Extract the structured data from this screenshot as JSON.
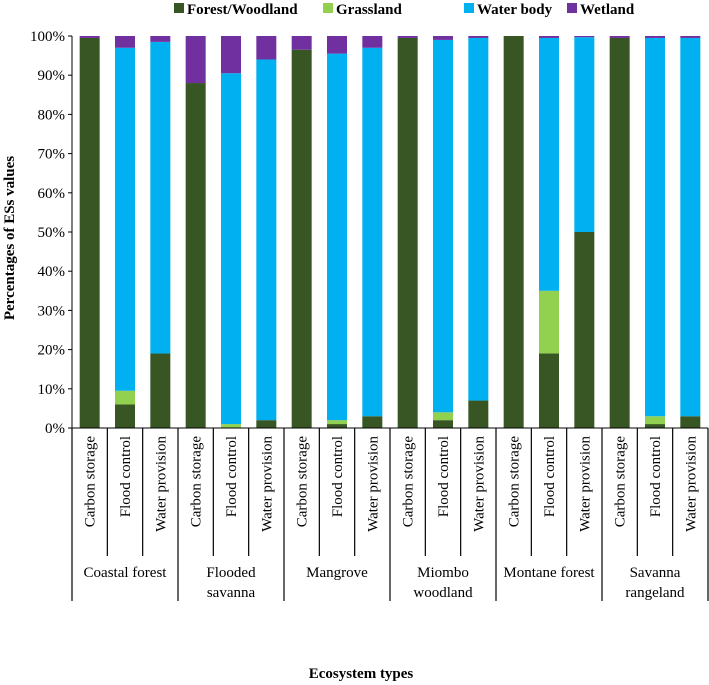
{
  "chart_data": {
    "type": "bar",
    "stacked": true,
    "percent": true,
    "title": "",
    "xlabel": "Ecosystem types",
    "ylabel": "Percentages of ESs values",
    "ylim": [
      0,
      100
    ],
    "yticks": [
      "0%",
      "10%",
      "20%",
      "30%",
      "40%",
      "50%",
      "60%",
      "70%",
      "80%",
      "90%",
      "100%"
    ],
    "legend_position": "top",
    "grid": false,
    "groups": [
      {
        "label_lines": [
          "Coastal forest"
        ],
        "services": [
          "Carbon storage",
          "Flood control",
          "Water provision"
        ]
      },
      {
        "label_lines": [
          "Flooded",
          "savanna"
        ],
        "services": [
          "Carbon storage",
          "Flood control",
          "Water provision"
        ]
      },
      {
        "label_lines": [
          "Mangrove"
        ],
        "services": [
          "Carbon storage",
          "Flood control",
          "Water provision"
        ]
      },
      {
        "label_lines": [
          "Miombo",
          "woodland"
        ],
        "services": [
          "Carbon storage",
          "Flood control",
          "Water provision"
        ]
      },
      {
        "label_lines": [
          "Montane forest"
        ],
        "services": [
          "Carbon storage",
          "Flood control",
          "Water provision"
        ]
      },
      {
        "label_lines": [
          "Savanna",
          "rangeland"
        ],
        "services": [
          "Carbon storage",
          "Flood control",
          "Water provision"
        ]
      }
    ],
    "series": [
      {
        "name": "Forest/Woodland",
        "color": "#375623",
        "values": [
          99.5,
          6,
          19,
          88,
          0,
          2,
          96.5,
          1,
          3,
          99.5,
          2,
          7,
          100,
          19,
          50,
          99.5,
          1,
          3
        ]
      },
      {
        "name": "Grassland",
        "color": "#92D050",
        "values": [
          0,
          3.5,
          0,
          0,
          1,
          0,
          0,
          1,
          0,
          0,
          2,
          0,
          0,
          16,
          0,
          0,
          2,
          0
        ]
      },
      {
        "name": "Water body",
        "color": "#00B0F0",
        "values": [
          0,
          87.5,
          79.5,
          0,
          89.5,
          92,
          0,
          93.5,
          94,
          0,
          95,
          92.5,
          0,
          64.5,
          49.7,
          0,
          96.5,
          96.5
        ]
      },
      {
        "name": "Wetland",
        "color": "#7030A0",
        "values": [
          0.5,
          3,
          1.5,
          12,
          9.5,
          6,
          3.5,
          4.5,
          3,
          0.5,
          1,
          0.5,
          0,
          0.5,
          0.3,
          0.5,
          0.5,
          0.5
        ]
      }
    ]
  }
}
